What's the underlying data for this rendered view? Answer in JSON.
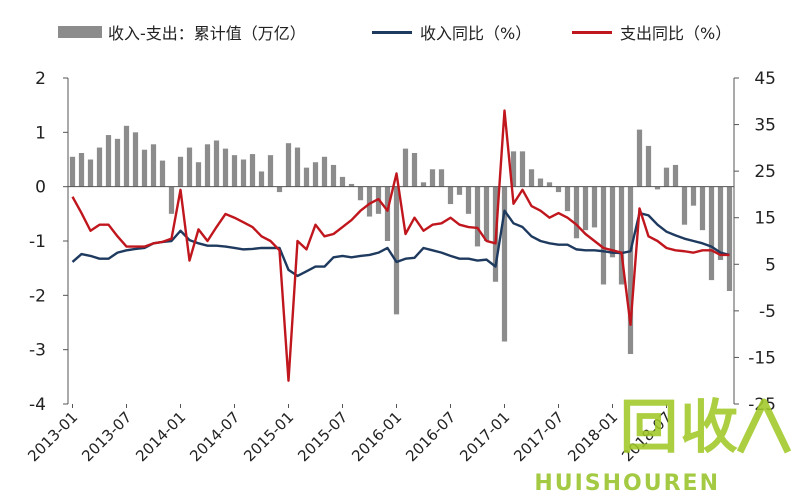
{
  "legend": {
    "bar_label": "收入-支出：累计值（万亿）",
    "line1_label": "收入同比（%）",
    "line2_label": "支出同比（%）"
  },
  "watermark": {
    "main": "回收",
    "sub": "HUISHOUREN"
  },
  "colors": {
    "bar": "#8c8c8c",
    "revenue_line": "#1f3a5f",
    "expenditure_line": "#c0161d",
    "axis": "#555555"
  },
  "chart_data": {
    "type": "bar+line",
    "x_tick_labels": [
      "2013-01",
      "2013-07",
      "2014-01",
      "2014-07",
      "2015-01",
      "2015-07",
      "2016-01",
      "2016-07",
      "2017-01",
      "2017-07",
      "2018-01",
      "2018-07"
    ],
    "x_tick_indices": [
      0,
      6,
      12,
      18,
      24,
      30,
      36,
      42,
      48,
      54,
      60,
      66
    ],
    "left_axis": {
      "ylim": [
        -4,
        2
      ],
      "ticks": [
        2,
        1,
        0,
        -1,
        -2,
        -3,
        -4
      ]
    },
    "right_axis": {
      "ylim": [
        -25,
        45
      ],
      "ticks": [
        45,
        35,
        25,
        15,
        5,
        -5,
        -15,
        -25
      ]
    },
    "grid": false,
    "legend_position": "top",
    "series": [
      {
        "name": "收入-支出：累计值（万亿）",
        "type": "bar",
        "axis": "left",
        "values": [
          0.55,
          0.62,
          0.5,
          0.72,
          0.95,
          0.88,
          1.12,
          1.0,
          0.68,
          0.78,
          0.48,
          -0.5,
          0.55,
          0.72,
          0.45,
          0.78,
          0.85,
          0.7,
          0.58,
          0.5,
          0.6,
          0.28,
          0.58,
          -0.1,
          0.8,
          0.72,
          0.35,
          0.45,
          0.55,
          0.4,
          0.18,
          0.05,
          -0.25,
          -0.55,
          -0.5,
          -1.0,
          -2.35,
          0.7,
          0.62,
          0.08,
          0.32,
          0.32,
          -0.32,
          -0.15,
          -0.5,
          -1.1,
          -1.0,
          -1.75,
          -2.85,
          0.65,
          0.65,
          0.32,
          0.15,
          0.08,
          -0.1,
          -0.45,
          -0.95,
          -0.8,
          -0.75,
          -1.8,
          -1.3,
          -1.8,
          -3.08,
          1.05,
          0.75,
          -0.05,
          0.35,
          0.4,
          -0.7,
          -0.35,
          -0.8,
          -1.72,
          -1.35,
          -1.92
        ]
      },
      {
        "name": "收入同比（%）",
        "type": "line",
        "axis": "right",
        "values": [
          5.5,
          7.2,
          6.8,
          6.2,
          6.2,
          7.5,
          8.0,
          8.3,
          8.5,
          9.5,
          9.8,
          10.0,
          12.2,
          10.2,
          9.5,
          9.0,
          9.0,
          8.8,
          8.5,
          8.2,
          8.3,
          8.5,
          8.5,
          8.5,
          3.8,
          2.5,
          3.5,
          4.5,
          4.5,
          6.5,
          6.8,
          6.5,
          6.8,
          7.0,
          7.5,
          8.5,
          5.5,
          6.2,
          6.4,
          8.5,
          8.0,
          7.5,
          6.8,
          6.2,
          6.2,
          5.8,
          6.0,
          4.5,
          16.5,
          13.8,
          13.0,
          11.0,
          10.0,
          9.5,
          9.2,
          9.2,
          8.2,
          8.0,
          8.0,
          7.8,
          7.5,
          7.4,
          7.8,
          16.0,
          15.5,
          13.5,
          12.0,
          11.2,
          10.5,
          10.0,
          9.5,
          8.8,
          7.5,
          7.0
        ]
      },
      {
        "name": "支出同比（%）",
        "type": "line",
        "axis": "right",
        "values": [
          19.5,
          16.0,
          12.2,
          13.5,
          13.5,
          11.0,
          8.8,
          8.8,
          8.8,
          9.5,
          9.8,
          10.5,
          21.0,
          5.8,
          12.5,
          10.0,
          13.0,
          15.8,
          15.0,
          14.0,
          13.0,
          11.0,
          10.0,
          8.0,
          -20.0,
          10.0,
          8.2,
          13.5,
          11.0,
          11.5,
          13.0,
          14.5,
          16.5,
          18.0,
          19.0,
          16.5,
          24.5,
          11.5,
          15.0,
          12.2,
          13.5,
          13.8,
          15.0,
          13.5,
          13.0,
          12.8,
          10.0,
          9.5,
          38.0,
          18.0,
          21.0,
          17.5,
          16.5,
          15.0,
          16.0,
          15.0,
          13.5,
          11.5,
          10.0,
          8.5,
          8.0,
          7.5,
          -8.0,
          17.0,
          11.0,
          10.0,
          8.5,
          8.0,
          7.8,
          7.5,
          8.0,
          8.0,
          7.0,
          7.0
        ]
      }
    ]
  }
}
